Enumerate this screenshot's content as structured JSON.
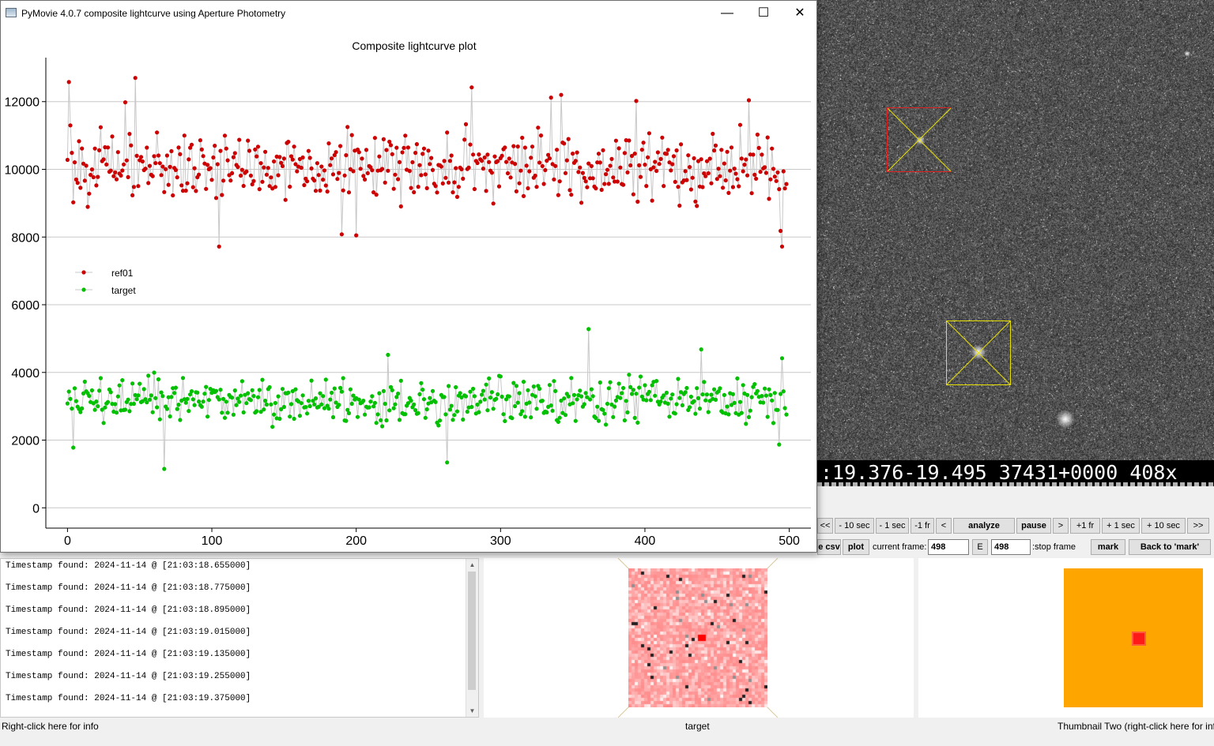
{
  "window": {
    "title": "PyMovie 4.0.7 composite lightcurve using Aperture Photometry",
    "minimize_icon": "minimize-icon",
    "maximize_icon": "maximize-icon",
    "close_icon": "close-icon"
  },
  "chart_data": {
    "type": "scatter",
    "title": "Composite lightcurve plot",
    "xlabel": "",
    "ylabel": "",
    "xlim": [
      -15,
      515
    ],
    "ylim": [
      -600,
      13300
    ],
    "x_ticks": [
      "0",
      "100",
      "200",
      "300",
      "400",
      "500"
    ],
    "y_ticks": [
      "0",
      "2000",
      "4000",
      "6000",
      "8000",
      "10000",
      "12000"
    ],
    "grid": "horizontal",
    "legend_position": "mid-left",
    "connect_points": true,
    "series": [
      {
        "name": "ref01",
        "color": "#cc0000",
        "mean": 10100,
        "spread": 700,
        "extremes": {
          "1": 12580,
          "2": 11300,
          "47": 12700,
          "40": 11980,
          "105": 7720,
          "190": 8080,
          "200": 8050,
          "280": 12420,
          "335": 12120,
          "342": 12200,
          "394": 12020,
          "472": 12040,
          "494": 8180,
          "495": 7720
        }
      },
      {
        "name": "target",
        "color": "#00c000",
        "mean": 3150,
        "spread": 480,
        "extremes": {
          "4": 1780,
          "67": 1150,
          "222": 4520,
          "263": 1340,
          "361": 5280,
          "439": 4680,
          "495": 4420,
          "493": 1870
        }
      }
    ]
  },
  "star_field": {
    "osd_text": ":19.376-19.495 37431+0000   408x"
  },
  "controls": {
    "nav_first": "<<",
    "nav_minus10sec": "- 10 sec",
    "nav_minus1sec": "- 1 sec",
    "nav_minus1fr": "-1 fr",
    "nav_prev": "<",
    "analyze": "analyze",
    "pause": "pause",
    "nav_next": ">",
    "nav_plus1fr": "+1 fr",
    "nav_plus1sec": "+ 1 sec",
    "nav_plus10sec": "+ 10 sec",
    "nav_last": ">>",
    "csv": "e csv",
    "plot": "plot",
    "current_frame_label": "current frame:",
    "current_frame_value": "498",
    "e_button": "E",
    "stop_frame_value": "498",
    "stop_frame_label": ":stop frame",
    "mark": "mark",
    "back_to_mark": "Back to 'mark'"
  },
  "log": {
    "lines": [
      "Timestamp found: 2024-11-14 @ [21:03:18.655000]",
      "Timestamp found: 2024-11-14 @ [21:03:18.775000]",
      "Timestamp found: 2024-11-14 @ [21:03:18.895000]",
      "Timestamp found: 2024-11-14 @ [21:03:19.015000]",
      "Timestamp found: 2024-11-14 @ [21:03:19.135000]",
      "Timestamp found: 2024-11-14 @ [21:03:19.255000]",
      "Timestamp found: 2024-11-14 @ [21:03:19.375000]"
    ]
  },
  "status": {
    "left": "Right-click here for info",
    "center": "target",
    "right": "Thumbnail Two (right-click here for info)"
  },
  "colors": {
    "ref_aperture": "#e02020",
    "target_aperture": "#e8e000",
    "thumb_two_bg": "#ffa500"
  }
}
